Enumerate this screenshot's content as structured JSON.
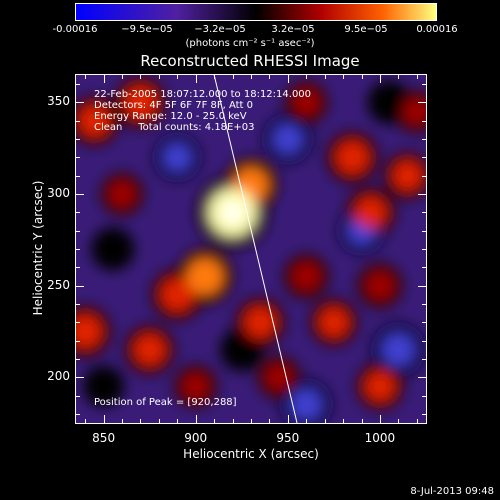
{
  "colorbar": {
    "ticks": [
      "-0.00016",
      "−9.5e−05",
      "−3.2e−05",
      "3.2e−05",
      "9.5e−05",
      "0.00016"
    ],
    "units": "(photons cm⁻² s⁻¹ asec⁻²)"
  },
  "chart_data": {
    "type": "heatmap",
    "title": "Reconstructed RHESSI Image",
    "xlabel": "Heliocentric X (arcsec)",
    "ylabel": "Heliocentric Y (arcsec)",
    "xlim": [
      835,
      1025
    ],
    "ylim": [
      175,
      365
    ],
    "xticks": [
      850,
      900,
      950,
      1000
    ],
    "yticks": [
      200,
      250,
      300,
      350
    ],
    "annotations": [
      "22-Feb-2005 18:07:12.000 to 18:12:14.000",
      "Detectors: 4F 5F 6F 7F 8F, Att 0",
      "Energy Range: 12.0 - 25.0 keV",
      "Clean     Total counts: 4.18E+03"
    ],
    "peak_label": "Position of Peak = [920,288]",
    "peak": [
      920,
      288
    ],
    "colormap": [
      "#0000ff",
      "#5020a0",
      "#000000",
      "#b00000",
      "#ff6000",
      "#ffff80"
    ],
    "value_range": [
      -0.00016,
      0.00016
    ],
    "limb_line": [
      [
        910,
        365
      ],
      [
        955,
        175
      ]
    ],
    "blobs": [
      {
        "x": 920,
        "y": 290,
        "v": 1.0
      },
      {
        "x": 930,
        "y": 305,
        "v": 0.6
      },
      {
        "x": 870,
        "y": 350,
        "v": 0.55
      },
      {
        "x": 845,
        "y": 340,
        "v": 0.5
      },
      {
        "x": 985,
        "y": 320,
        "v": 0.55
      },
      {
        "x": 995,
        "y": 290,
        "v": 0.5
      },
      {
        "x": 1015,
        "y": 310,
        "v": 0.45
      },
      {
        "x": 905,
        "y": 255,
        "v": 0.65
      },
      {
        "x": 890,
        "y": 245,
        "v": 0.55
      },
      {
        "x": 840,
        "y": 225,
        "v": 0.55
      },
      {
        "x": 875,
        "y": 215,
        "v": 0.5
      },
      {
        "x": 935,
        "y": 230,
        "v": 0.5
      },
      {
        "x": 960,
        "y": 255,
        "v": 0.4
      },
      {
        "x": 975,
        "y": 230,
        "v": 0.45
      },
      {
        "x": 1000,
        "y": 250,
        "v": 0.4
      },
      {
        "x": 1000,
        "y": 195,
        "v": 0.45
      },
      {
        "x": 945,
        "y": 200,
        "v": 0.35
      },
      {
        "x": 900,
        "y": 195,
        "v": 0.35
      },
      {
        "x": 960,
        "y": 350,
        "v": 0.35
      },
      {
        "x": 1020,
        "y": 345,
        "v": 0.35
      },
      {
        "x": 860,
        "y": 300,
        "v": 0.35
      },
      {
        "x": 950,
        "y": 330,
        "v": -0.45
      },
      {
        "x": 890,
        "y": 320,
        "v": -0.4
      },
      {
        "x": 855,
        "y": 270,
        "v": -0.35
      },
      {
        "x": 1010,
        "y": 215,
        "v": -0.55
      },
      {
        "x": 960,
        "y": 185,
        "v": -0.5
      },
      {
        "x": 925,
        "y": 215,
        "v": -0.35
      },
      {
        "x": 990,
        "y": 280,
        "v": -0.4
      },
      {
        "x": 850,
        "y": 195,
        "v": -0.3
      },
      {
        "x": 1005,
        "y": 350,
        "v": -0.35
      }
    ]
  },
  "footer": {
    "date": "8-Jul-2013 09:48"
  }
}
